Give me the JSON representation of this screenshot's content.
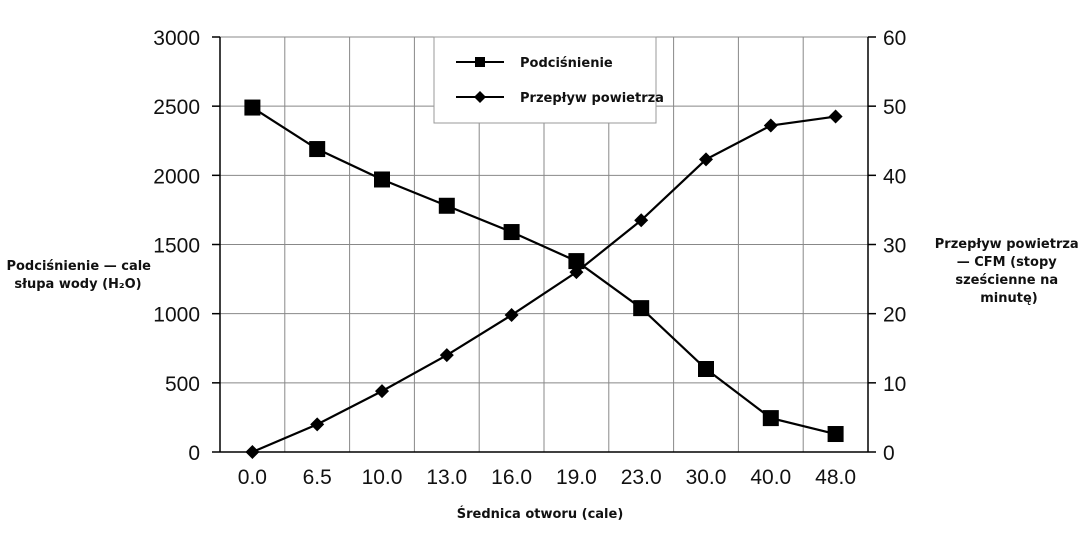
{
  "chart_data": {
    "type": "line",
    "categories": [
      "0.0",
      "6.5",
      "10.0",
      "13.0",
      "16.0",
      "19.0",
      "23.0",
      "30.0",
      "40.0",
      "48.0"
    ],
    "series": [
      {
        "name": "Podciśnienie",
        "axis": "left",
        "marker": "square",
        "values": [
          2490,
          2190,
          1970,
          1780,
          1590,
          1380,
          1040,
          600,
          245,
          130
        ]
      },
      {
        "name": "Przepływ powietrza",
        "axis": "right",
        "marker": "diamond",
        "values": [
          0,
          4,
          8.8,
          14,
          19.8,
          26,
          33.5,
          42.3,
          47.2,
          48.5
        ]
      }
    ],
    "xlabel": "Średnica otworu (cale)",
    "ylabel_left": [
      "Podciśnienie — cale",
      "słupa wody (H₂O)"
    ],
    "ylabel_right": [
      "Przepływ powietrza",
      "— CFM (stopy",
      "sześcienne na",
      "minutę)"
    ],
    "ylim_left": [
      0,
      3000
    ],
    "ylim_right": [
      0,
      60
    ],
    "yticks_left": [
      "0",
      "500",
      "1000",
      "1500",
      "2000",
      "2500",
      "3000"
    ],
    "yticks_right": [
      "0",
      "10",
      "20",
      "30",
      "40",
      "50",
      "60"
    ],
    "grid": true,
    "legend_position": "top-center",
    "colors": {
      "line": "#000000",
      "grid": "#888888"
    }
  }
}
